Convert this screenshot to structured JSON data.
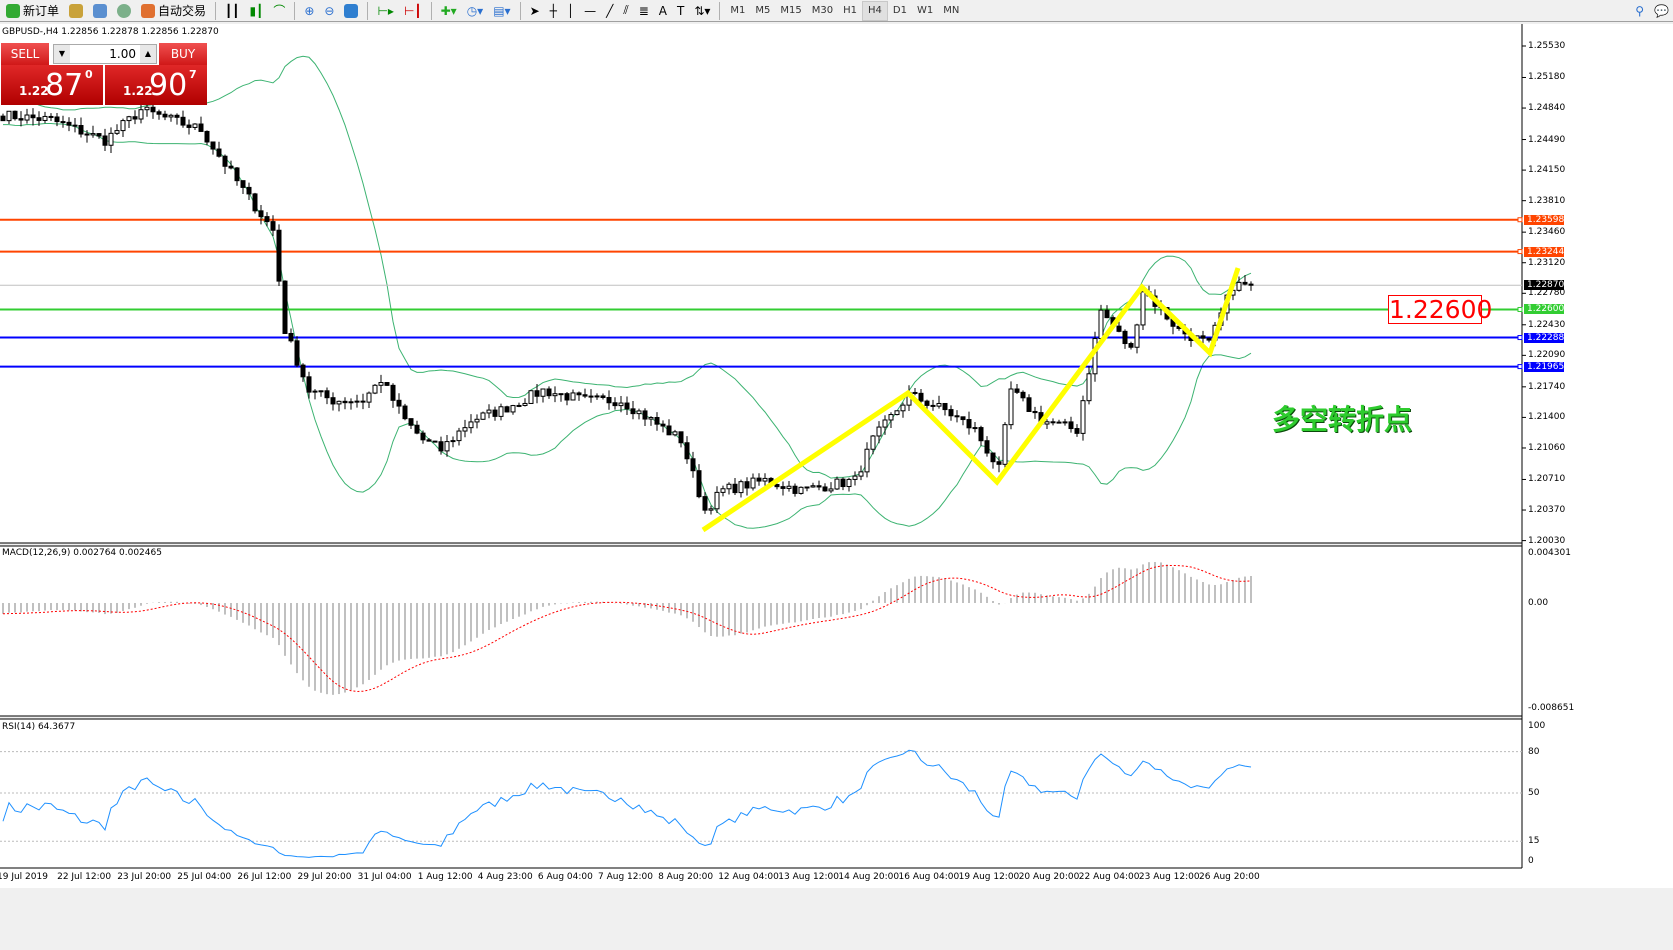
{
  "toolbar": {
    "new_order": "新订单",
    "auto_trading": "自动交易",
    "timeframes": [
      "M1",
      "M5",
      "M15",
      "M30",
      "H1",
      "H4",
      "D1",
      "W1",
      "MN"
    ],
    "active_timeframe": "H4"
  },
  "chart": {
    "header": "GBPUSD-,H4  1.22856 1.22878 1.22856 1.22870",
    "price_axis": [
      "1.25530",
      "1.25180",
      "1.24840",
      "1.24490",
      "1.24150",
      "1.23810",
      "1.23460",
      "1.23120",
      "1.22780",
      "1.22430",
      "1.22090",
      "1.21740",
      "1.21400",
      "1.21060",
      "1.20710",
      "1.20370",
      "1.20030"
    ],
    "levels": [
      {
        "price": "1.23598",
        "color": "#ff4500"
      },
      {
        "price": "1.23244",
        "color": "#ff4500"
      },
      {
        "price": "1.22600",
        "color": "#32cd32"
      },
      {
        "price": "1.22288",
        "color": "#0000ff"
      },
      {
        "price": "1.21965",
        "color": "#0000ff"
      }
    ],
    "current_price": "1.22870",
    "annotation_price": "1.22600",
    "annotation_text": "多空转折点",
    "close_anchors": [
      [
        0,
        1.2476
      ],
      [
        8,
        1.2471
      ],
      [
        17,
        1.2448
      ],
      [
        23,
        1.2482
      ],
      [
        33,
        1.246
      ],
      [
        40,
        1.2393
      ],
      [
        45,
        1.2348
      ],
      [
        47,
        1.2237
      ],
      [
        51,
        1.217
      ],
      [
        55,
        1.2159
      ],
      [
        60,
        1.2159
      ],
      [
        63,
        1.2182
      ],
      [
        67,
        1.2137
      ],
      [
        70,
        1.2115
      ],
      [
        73,
        1.2104
      ],
      [
        78,
        1.2137
      ],
      [
        83,
        1.2148
      ],
      [
        90,
        1.217
      ],
      [
        97,
        1.2159
      ],
      [
        103,
        1.2159
      ],
      [
        108,
        1.2137
      ],
      [
        113,
        1.2115
      ],
      [
        117,
        1.2037
      ],
      [
        120,
        1.2059
      ],
      [
        127,
        1.207
      ],
      [
        133,
        1.2059
      ],
      [
        142,
        1.207
      ],
      [
        145,
        1.2115
      ],
      [
        151,
        1.2165
      ],
      [
        157,
        1.2148
      ],
      [
        162,
        1.2126
      ],
      [
        166,
        1.2082
      ],
      [
        168,
        1.217
      ],
      [
        173,
        1.2137
      ],
      [
        179,
        1.2126
      ],
      [
        183,
        1.2259
      ],
      [
        188,
        1.2215
      ],
      [
        190,
        1.2282
      ],
      [
        196,
        1.2237
      ],
      [
        201,
        1.2221
      ],
      [
        205,
        1.2287
      ],
      [
        208,
        1.2287
      ]
    ]
  },
  "trade_panel": {
    "sell_label": "SELL",
    "buy_label": "BUY",
    "lot": "1.00",
    "sell_price": {
      "prefix": "1.22",
      "big": "87",
      "sup": "0"
    },
    "buy_price": {
      "prefix": "1.22",
      "big": "90",
      "sup": "7"
    }
  },
  "macd": {
    "label": "MACD(12,26,9) 0.002764 0.002465",
    "axis": [
      "0.004301",
      "0.00",
      "-0.008651"
    ]
  },
  "rsi": {
    "label": "RSI(14) 64.3677",
    "axis": [
      "100",
      "80",
      "50",
      "15",
      "0"
    ]
  },
  "time_axis": [
    "19 Jul 2019",
    "22 Jul 12:00",
    "23 Jul 20:00",
    "25 Jul 04:00",
    "26 Jul 12:00",
    "29 Jul 20:00",
    "31 Jul 04:00",
    "1 Aug 12:00",
    "4 Aug 23:00",
    "6 Aug 04:00",
    "7 Aug 12:00",
    "8 Aug 20:00",
    "12 Aug 04:00",
    "13 Aug 12:00",
    "14 Aug 20:00",
    "16 Aug 04:00",
    "19 Aug 12:00",
    "20 Aug 20:00",
    "22 Aug 04:00",
    "23 Aug 12:00",
    "26 Aug 20:00"
  ]
}
